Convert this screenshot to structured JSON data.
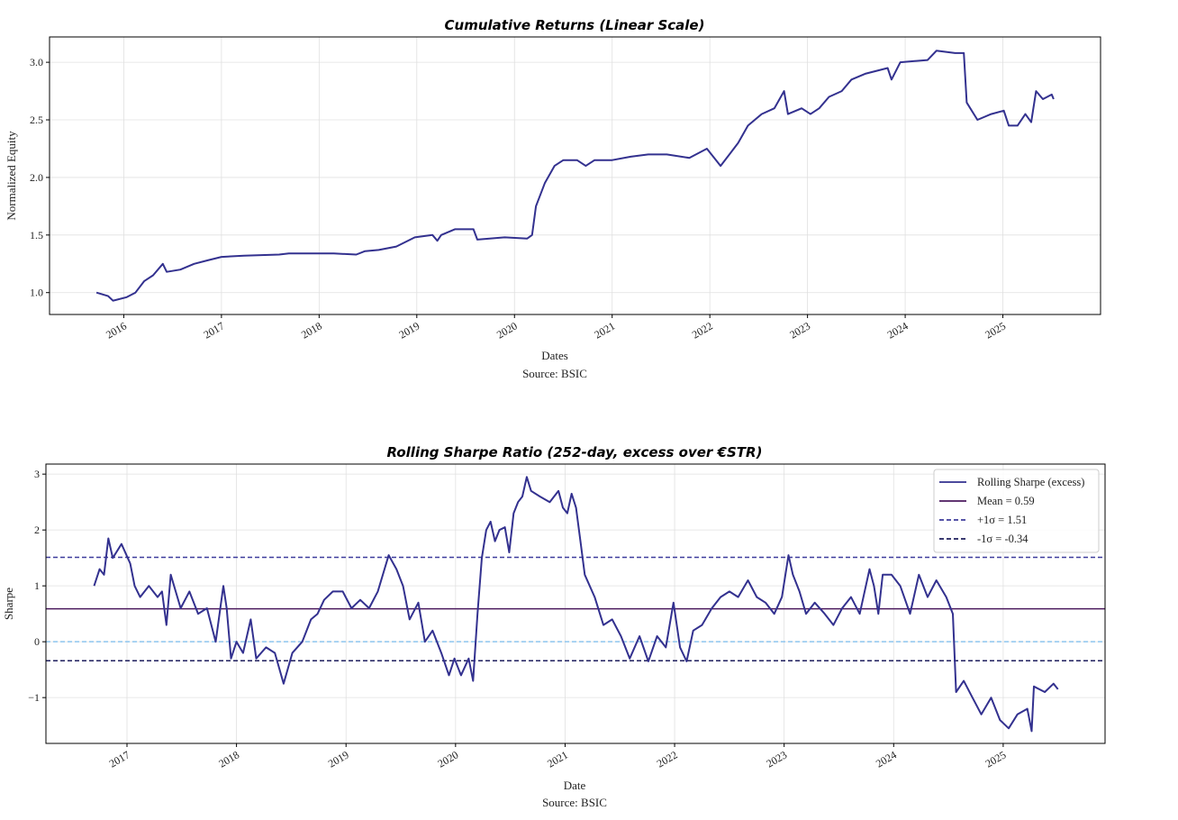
{
  "chart_data": [
    {
      "type": "line",
      "title": "Cumulative Returns (Linear Scale)",
      "xlabel": "Dates",
      "ylabel": "Normalized Equity",
      "source": "Source: BSIC",
      "xlim": [
        2015.24,
        2026.0
      ],
      "ylim": [
        0.81,
        3.22
      ],
      "xticks": [
        2016,
        2017,
        2018,
        2019,
        2020,
        2021,
        2022,
        2023,
        2024,
        2025
      ],
      "xtick_labels": [
        "2016",
        "2017",
        "2018",
        "2019",
        "2020",
        "2021",
        "2022",
        "2023",
        "2024",
        "2025"
      ],
      "yticks": [
        1.0,
        1.5,
        2.0,
        2.5,
        3.0
      ],
      "ytick_labels": [
        "1.0",
        "1.5",
        "2.0",
        "2.5",
        "3.0"
      ],
      "grid": true,
      "series": [
        {
          "name": "Equity",
          "color": "#33318f",
          "x": [
            2015.72,
            2015.84,
            2015.89,
            2016.03,
            2016.12,
            2016.21,
            2016.3,
            2016.4,
            2016.44,
            2016.58,
            2016.72,
            2016.86,
            2017.0,
            2017.23,
            2017.59,
            2017.69,
            2018.15,
            2018.38,
            2018.47,
            2018.61,
            2018.79,
            2018.98,
            2019.16,
            2019.21,
            2019.25,
            2019.39,
            2019.58,
            2019.62,
            2019.9,
            2020.13,
            2020.18,
            2020.22,
            2020.31,
            2020.41,
            2020.5,
            2020.64,
            2020.73,
            2020.82,
            2021.0,
            2021.19,
            2021.37,
            2021.56,
            2021.79,
            2021.97,
            2022.11,
            2022.2,
            2022.29,
            2022.39,
            2022.53,
            2022.66,
            2022.76,
            2022.8,
            2022.94,
            2023.03,
            2023.12,
            2023.22,
            2023.35,
            2023.45,
            2023.59,
            2023.82,
            2023.86,
            2023.95,
            2024.23,
            2024.32,
            2024.51,
            2024.6,
            2024.63,
            2024.74,
            2024.88,
            2025.01,
            2025.06,
            2025.15,
            2025.23,
            2025.29,
            2025.34,
            2025.41,
            2025.5,
            2025.52
          ],
          "y": [
            1.0,
            0.97,
            0.93,
            0.96,
            1.0,
            1.1,
            1.15,
            1.25,
            1.18,
            1.2,
            1.25,
            1.28,
            1.31,
            1.32,
            1.33,
            1.34,
            1.34,
            1.33,
            1.36,
            1.37,
            1.4,
            1.48,
            1.5,
            1.45,
            1.5,
            1.55,
            1.55,
            1.46,
            1.48,
            1.47,
            1.5,
            1.75,
            1.95,
            2.1,
            2.15,
            2.15,
            2.1,
            2.15,
            2.15,
            2.18,
            2.2,
            2.2,
            2.17,
            2.25,
            2.1,
            2.2,
            2.3,
            2.45,
            2.55,
            2.6,
            2.75,
            2.55,
            2.6,
            2.55,
            2.6,
            2.7,
            2.75,
            2.85,
            2.9,
            2.95,
            2.85,
            3.0,
            3.02,
            3.1,
            3.08,
            3.08,
            2.65,
            2.5,
            2.55,
            2.58,
            2.45,
            2.45,
            2.55,
            2.48,
            2.75,
            2.68,
            2.72,
            2.68
          ]
        }
      ]
    },
    {
      "type": "line",
      "title": "Rolling Sharpe Ratio (252-day, excess over €STR)",
      "xlabel": "Date",
      "ylabel": "Sharpe",
      "source": "Source: BSIC",
      "xlim": [
        2016.26,
        2025.93
      ],
      "ylim": [
        -1.82,
        3.18
      ],
      "xticks": [
        2017,
        2018,
        2019,
        2020,
        2021,
        2022,
        2023,
        2024,
        2025
      ],
      "xtick_labels": [
        "2017",
        "2018",
        "2019",
        "2020",
        "2021",
        "2022",
        "2023",
        "2024",
        "2025"
      ],
      "yticks": [
        -1,
        0,
        1,
        2,
        3
      ],
      "ytick_labels": [
        "−1",
        "0",
        "1",
        "2",
        "3"
      ],
      "grid": true,
      "legend_position": "top-right",
      "legend": [
        "Rolling Sharpe (excess)",
        "Mean = 0.59",
        "+1σ = 1.51",
        "-1σ = -0.34"
      ],
      "hlines": [
        {
          "name": "Mean = 0.59",
          "y": 0.59,
          "color": "#4b1a5e",
          "style": "solid"
        },
        {
          "name": "+1σ = 1.51",
          "y": 1.51,
          "color": "#3f3d9c",
          "style": "dashed"
        },
        {
          "name": "-1σ = -0.34",
          "y": -0.34,
          "color": "#1e1e5c",
          "style": "dashed"
        },
        {
          "name": "zero",
          "y": 0,
          "color": "#8ec5ee",
          "style": "dashed"
        }
      ],
      "series": [
        {
          "name": "Rolling Sharpe (excess)",
          "color": "#33318f",
          "x": [
            2016.7,
            2016.75,
            2016.79,
            2016.83,
            2016.87,
            2016.95,
            2017.03,
            2017.07,
            2017.12,
            2017.2,
            2017.28,
            2017.32,
            2017.36,
            2017.4,
            2017.49,
            2017.57,
            2017.65,
            2017.73,
            2017.81,
            2017.88,
            2017.91,
            2017.95,
            2018.0,
            2018.06,
            2018.13,
            2018.18,
            2018.27,
            2018.35,
            2018.43,
            2018.51,
            2018.6,
            2018.68,
            2018.74,
            2018.8,
            2018.88,
            2018.97,
            2019.05,
            2019.13,
            2019.21,
            2019.29,
            2019.39,
            2019.46,
            2019.52,
            2019.58,
            2019.66,
            2019.72,
            2019.79,
            2019.87,
            2019.94,
            2019.99,
            2020.05,
            2020.12,
            2020.16,
            2020.2,
            2020.24,
            2020.28,
            2020.32,
            2020.36,
            2020.4,
            2020.45,
            2020.49,
            2020.53,
            2020.57,
            2020.61,
            2020.65,
            2020.69,
            2020.77,
            2020.86,
            2020.94,
            2020.98,
            2021.02,
            2021.06,
            2021.1,
            2021.14,
            2021.18,
            2021.27,
            2021.35,
            2021.43,
            2021.51,
            2021.59,
            2021.68,
            2021.76,
            2021.84,
            2021.92,
            2021.99,
            2022.05,
            2022.11,
            2022.17,
            2022.25,
            2022.34,
            2022.42,
            2022.5,
            2022.58,
            2022.67,
            2022.75,
            2022.83,
            2022.91,
            2022.98,
            2023.04,
            2023.08,
            2023.14,
            2023.2,
            2023.28,
            2023.37,
            2023.45,
            2023.53,
            2023.61,
            2023.69,
            2023.78,
            2023.82,
            2023.86,
            2023.9,
            2023.98,
            2024.06,
            2024.15,
            2024.23,
            2024.31,
            2024.39,
            2024.48,
            2024.54,
            2024.57,
            2024.64,
            2024.72,
            2024.8,
            2024.89,
            2024.97,
            2025.05,
            2025.13,
            2025.22,
            2025.26,
            2025.28,
            2025.38,
            2025.46,
            2025.5
          ],
          "y": [
            1.0,
            1.3,
            1.2,
            1.85,
            1.5,
            1.75,
            1.4,
            1.0,
            0.8,
            1.0,
            0.8,
            0.9,
            0.3,
            1.2,
            0.6,
            0.9,
            0.5,
            0.6,
            0.0,
            1.0,
            0.6,
            -0.3,
            0.0,
            -0.2,
            0.4,
            -0.3,
            -0.1,
            -0.2,
            -0.75,
            -0.2,
            0.0,
            0.4,
            0.5,
            0.75,
            0.9,
            0.9,
            0.6,
            0.75,
            0.6,
            0.9,
            1.55,
            1.3,
            1.0,
            0.4,
            0.7,
            0.0,
            0.2,
            -0.2,
            -0.6,
            -0.3,
            -0.6,
            -0.3,
            -0.7,
            0.5,
            1.5,
            2.0,
            2.15,
            1.8,
            2.0,
            2.05,
            1.6,
            2.3,
            2.5,
            2.6,
            2.95,
            2.7,
            2.6,
            2.5,
            2.7,
            2.4,
            2.3,
            2.65,
            2.4,
            1.8,
            1.2,
            0.8,
            0.3,
            0.4,
            0.1,
            -0.3,
            0.1,
            -0.35,
            0.1,
            -0.1,
            0.7,
            -0.1,
            -0.35,
            0.2,
            0.3,
            0.6,
            0.8,
            0.9,
            0.8,
            1.1,
            0.8,
            0.7,
            0.5,
            0.8,
            1.55,
            1.2,
            0.9,
            0.5,
            0.7,
            0.5,
            0.3,
            0.6,
            0.8,
            0.5,
            1.3,
            1.0,
            0.5,
            1.2,
            1.2,
            1.0,
            0.5,
            1.2,
            0.8,
            1.1,
            0.8,
            0.5,
            -0.9,
            -0.7,
            -1.0,
            -1.3,
            -1.0,
            -1.4,
            -1.55,
            -1.3,
            -1.2,
            -1.6,
            -0.8,
            -0.9,
            -0.75,
            -0.85
          ]
        }
      ]
    }
  ]
}
